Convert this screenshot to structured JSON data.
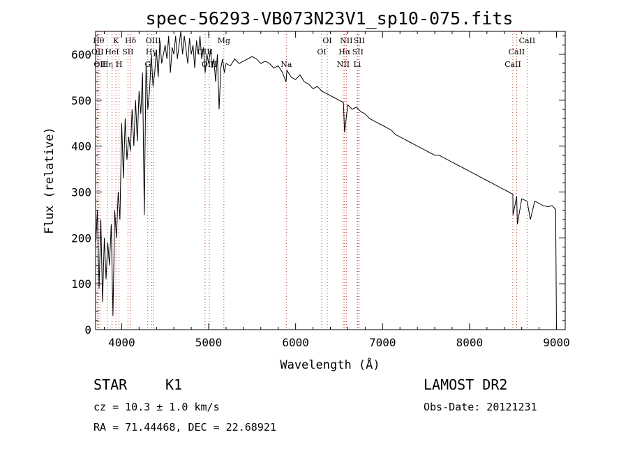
{
  "chart_data": {
    "type": "line",
    "title": "spec-56293-VB073N23V1_sp10-075.fits",
    "xlabel": "Wavelength (Å)",
    "ylabel": "Flux (relative)",
    "xlim": [
      3700,
      9100
    ],
    "ylim": [
      0,
      650
    ],
    "xticks": [
      4000,
      5000,
      6000,
      7000,
      8000,
      9000
    ],
    "yticks": [
      0,
      100,
      200,
      300,
      400,
      500,
      600
    ],
    "grid": false,
    "series": [
      {
        "x": [
          3700,
          3720,
          3740,
          3760,
          3780,
          3800,
          3820,
          3840,
          3860,
          3880,
          3900,
          3920,
          3940,
          3960,
          3980,
          4000,
          4020,
          4040,
          4060,
          4080,
          4100,
          4120,
          4140,
          4160,
          4180,
          4200,
          4220,
          4240,
          4260,
          4280,
          4300,
          4320,
          4340,
          4360,
          4380,
          4400,
          4420,
          4440,
          4460,
          4480,
          4500,
          4520,
          4540,
          4560,
          4580,
          4600,
          4620,
          4640,
          4660,
          4680,
          4700,
          4720,
          4740,
          4760,
          4780,
          4800,
          4820,
          4840,
          4860,
          4880,
          4900,
          4920,
          4940,
          4960,
          4980,
          5000,
          5020,
          5040,
          5060,
          5080,
          5100,
          5120,
          5140,
          5160,
          5180,
          5200,
          5250,
          5300,
          5350,
          5400,
          5450,
          5500,
          5550,
          5600,
          5650,
          5700,
          5750,
          5800,
          5850,
          5890,
          5900,
          5950,
          6000,
          6050,
          6100,
          6150,
          6200,
          6250,
          6300,
          6350,
          6400,
          6450,
          6500,
          6550,
          6563,
          6600,
          6650,
          6700,
          6750,
          6800,
          6850,
          6900,
          6950,
          7000,
          7050,
          7100,
          7150,
          7200,
          7250,
          7300,
          7350,
          7400,
          7450,
          7500,
          7550,
          7600,
          7650,
          7700,
          7750,
          7800,
          7850,
          7900,
          7950,
          8000,
          8050,
          8100,
          8150,
          8200,
          8250,
          8300,
          8350,
          8400,
          8450,
          8498,
          8500,
          8542,
          8550,
          8600,
          8662,
          8700,
          8750,
          8800,
          8850,
          8900,
          8950,
          8990,
          9000
        ],
        "y": [
          180,
          260,
          90,
          240,
          60,
          200,
          110,
          190,
          140,
          230,
          30,
          260,
          200,
          300,
          240,
          450,
          330,
          460,
          370,
          420,
          390,
          480,
          400,
          500,
          410,
          520,
          470,
          560,
          250,
          580,
          480,
          520,
          600,
          530,
          560,
          610,
          550,
          630,
          580,
          600,
          620,
          590,
          640,
          560,
          615,
          600,
          640,
          590,
          620,
          650,
          600,
          640,
          610,
          580,
          635,
          600,
          620,
          570,
          630,
          600,
          640,
          590,
          615,
          560,
          600,
          580,
          610,
          570,
          590,
          540,
          600,
          480,
          570,
          590,
          560,
          580,
          575,
          590,
          580,
          585,
          590,
          595,
          590,
          580,
          585,
          580,
          570,
          575,
          560,
          540,
          565,
          550,
          545,
          555,
          540,
          535,
          525,
          530,
          520,
          515,
          510,
          505,
          500,
          495,
          430,
          490,
          480,
          485,
          475,
          470,
          460,
          455,
          450,
          445,
          440,
          435,
          425,
          420,
          415,
          410,
          405,
          400,
          395,
          390,
          385,
          380,
          380,
          375,
          370,
          365,
          360,
          355,
          350,
          345,
          340,
          335,
          330,
          325,
          320,
          315,
          310,
          305,
          300,
          295,
          250,
          290,
          230,
          285,
          280,
          240,
          280,
          275,
          270,
          268,
          270,
          262,
          0
        ]
      }
    ],
    "line_markers": [
      {
        "wave": 3722,
        "label": "OII",
        "row": 2
      },
      {
        "wave": 3734,
        "label": "Hθ",
        "row": 1
      },
      {
        "wave": 3750,
        "label": "OII",
        "row": 3
      },
      {
        "wave": 3835,
        "label": "Hη",
        "row": 3
      },
      {
        "wave": 3889,
        "label": "HeI",
        "row": 2
      },
      {
        "wave": 3934,
        "label": "K",
        "row": 1
      },
      {
        "wave": 3969,
        "label": "H",
        "row": 3
      },
      {
        "wave": 4072,
        "label": "SII",
        "row": 2
      },
      {
        "wave": 4102,
        "label": "Hδ",
        "row": 1
      },
      {
        "wave": 4300,
        "label": "G",
        "row": 3
      },
      {
        "wave": 4341,
        "label": "Hγ",
        "row": 2
      },
      {
        "wave": 4363,
        "label": "OIII",
        "row": 1
      },
      {
        "wave": 4959,
        "label": "OIII",
        "row": 2
      },
      {
        "wave": 5007,
        "label": "OIII",
        "row": 3
      },
      {
        "wave": 5175,
        "label": "Mg",
        "row": 1
      },
      {
        "wave": 5893,
        "label": "Na",
        "row": 3
      },
      {
        "wave": 6300,
        "label": "OI",
        "row": 2
      },
      {
        "wave": 6364,
        "label": "OI",
        "row": 1
      },
      {
        "wave": 6548,
        "label": "NII",
        "row": 3
      },
      {
        "wave": 6563,
        "label": "Hα",
        "row": 2
      },
      {
        "wave": 6583,
        "label": "NII",
        "row": 1
      },
      {
        "wave": 6708,
        "label": "Li",
        "row": 3
      },
      {
        "wave": 6716,
        "label": "SII",
        "row": 2
      },
      {
        "wave": 6731,
        "label": "SII",
        "row": 1
      },
      {
        "wave": 8498,
        "label": "CaII",
        "row": 3
      },
      {
        "wave": 8542,
        "label": "CaII",
        "row": 2
      },
      {
        "wave": 8662,
        "label": "CaII",
        "row": 1
      }
    ]
  },
  "info": {
    "object_class": "STAR",
    "subclass": "K1",
    "survey": "LAMOST DR2",
    "cz": "cz = 10.3 ± 1.0 km/s",
    "obs_date": "Obs-Date: 20121231",
    "coords": "RA =  71.44468, DEC =  22.68921"
  }
}
